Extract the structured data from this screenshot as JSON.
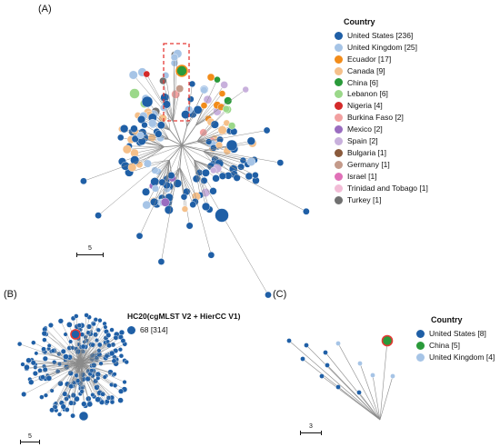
{
  "panel_a": {
    "label": "(A)",
    "legend_title": "Country",
    "legend": [
      {
        "text": "United States [236]",
        "color": "#1f5fa6"
      },
      {
        "text": "United Kingdom [25]",
        "color": "#a6c4e6"
      },
      {
        "text": "Ecuador [17]",
        "color": "#f28c1a"
      },
      {
        "text": "Canada [9]",
        "color": "#f5c08a"
      },
      {
        "text": "China [6]",
        "color": "#2a9a3a"
      },
      {
        "text": "Lebanon [6]",
        "color": "#9bd88a"
      },
      {
        "text": "Nigeria [4]",
        "color": "#d42a2a"
      },
      {
        "text": "Burkina Faso [2]",
        "color": "#f2a0a0"
      },
      {
        "text": "Mexico [2]",
        "color": "#9a6cc0"
      },
      {
        "text": "Spain [2]",
        "color": "#c8b0dc"
      },
      {
        "text": "Bulgaria [1]",
        "color": "#8a5a3c"
      },
      {
        "text": "Germany [1]",
        "color": "#c49a8a"
      },
      {
        "text": "Israel [1]",
        "color": "#e070b8"
      },
      {
        "text": "Trinidad and Tobago [1]",
        "color": "#f2bcd6"
      },
      {
        "text": "Turkey [1]",
        "color": "#707070"
      }
    ],
    "scale": "5"
  },
  "panel_b": {
    "label": "(B)",
    "legend_title": "HC20(cgMLST V2 + HierCC V1)",
    "legend": [
      {
        "text": "68 [314]",
        "color": "#1f5fa6"
      }
    ],
    "scale": "5"
  },
  "panel_c": {
    "label": "(C)",
    "legend_title": "Country",
    "legend": [
      {
        "text": "United States [8]",
        "color": "#1f5fa6"
      },
      {
        "text": "China [5]",
        "color": "#2a9a3a"
      },
      {
        "text": "United Kingdom [4]",
        "color": "#a6c4e6"
      }
    ],
    "scale": "3"
  }
}
